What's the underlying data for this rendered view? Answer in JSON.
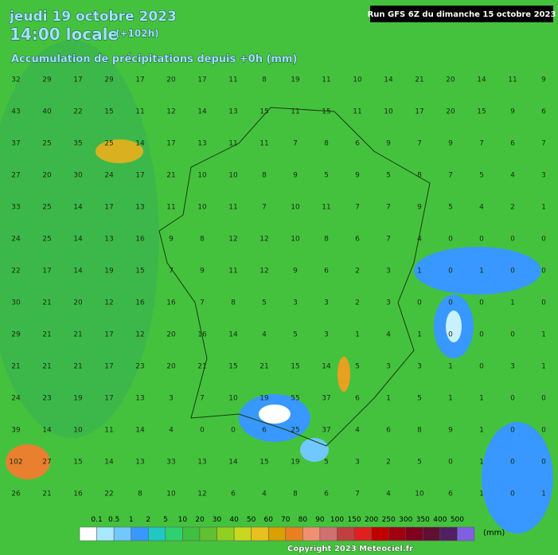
{
  "header": {
    "date": "jeudi 19 octobre 2023",
    "time": "14:00 locale",
    "lead": "(+102h)",
    "subtitle": "Accumulation de précipitations depuis +0h (mm)",
    "run": "Run GFS 6Z du dimanche 15 octobre 2023"
  },
  "grid_values": [
    [
      32,
      29,
      17,
      29,
      17,
      20,
      17,
      11,
      8,
      19,
      11,
      10,
      14,
      21,
      20,
      14,
      11,
      9
    ],
    [
      43,
      40,
      22,
      15,
      11,
      12,
      14,
      13,
      15,
      11,
      15,
      11,
      10,
      17,
      20,
      15,
      9,
      6
    ],
    [
      37,
      25,
      35,
      25,
      14,
      17,
      13,
      11,
      11,
      7,
      8,
      6,
      9,
      7,
      9,
      7,
      6,
      7
    ],
    [
      27,
      20,
      30,
      24,
      17,
      21,
      10,
      10,
      8,
      9,
      5,
      9,
      5,
      8,
      7,
      5,
      4,
      3
    ],
    [
      33,
      25,
      14,
      17,
      13,
      11,
      10,
      11,
      7,
      10,
      11,
      7,
      7,
      9,
      5,
      4,
      2,
      1
    ],
    [
      24,
      25,
      14,
      13,
      16,
      9,
      8,
      12,
      12,
      10,
      8,
      6,
      7,
      4,
      0,
      0,
      0,
      0
    ],
    [
      22,
      17,
      14,
      19,
      15,
      7,
      9,
      11,
      12,
      9,
      6,
      2,
      3,
      1,
      0,
      1,
      0,
      0
    ],
    [
      30,
      21,
      20,
      12,
      16,
      16,
      7,
      8,
      5,
      3,
      3,
      2,
      3,
      0,
      0,
      0,
      1,
      0
    ],
    [
      29,
      21,
      21,
      17,
      12,
      20,
      16,
      14,
      4,
      5,
      3,
      1,
      4,
      1,
      0,
      0,
      0,
      1
    ],
    [
      21,
      21,
      21,
      17,
      23,
      20,
      21,
      15,
      21,
      15,
      14,
      5,
      3,
      3,
      1,
      0,
      3,
      1
    ],
    [
      24,
      23,
      19,
      17,
      13,
      3,
      7,
      10,
      19,
      55,
      37,
      6,
      1,
      5,
      1,
      1,
      0,
      0
    ],
    [
      39,
      14,
      10,
      11,
      14,
      4,
      0,
      0,
      6,
      25,
      37,
      4,
      6,
      8,
      9,
      1,
      0,
      0
    ],
    [
      102,
      27,
      15,
      14,
      13,
      33,
      13,
      14,
      15,
      19,
      5,
      3,
      2,
      5,
      0,
      1,
      0,
      0
    ],
    [
      26,
      21,
      16,
      22,
      8,
      10,
      12,
      6,
      4,
      8,
      6,
      7,
      4,
      10,
      6,
      1,
      0,
      1
    ]
  ],
  "legend": {
    "labels": [
      "0.1",
      "0.5",
      "1",
      "2",
      "5",
      "10",
      "20",
      "30",
      "40",
      "50",
      "60",
      "70",
      "80",
      "90",
      "100",
      "150",
      "200",
      "250",
      "300",
      "350",
      "400",
      "500"
    ],
    "unit": "(mm)",
    "colors": [
      "#ffffff",
      "#a8e8ff",
      "#70c8ff",
      "#3898ff",
      "#20c8c0",
      "#30d070",
      "#40c040",
      "#60c030",
      "#90d020",
      "#c8d820",
      "#e8c020",
      "#d8a000",
      "#e88020",
      "#f09070",
      "#d07070",
      "#c04040",
      "#e02020",
      "#c00000",
      "#a00010",
      "#800020",
      "#601030",
      "#502060",
      "#8060e0"
    ]
  },
  "footer": {
    "copyright": "Copyright 2023 Meteociel.fr"
  }
}
